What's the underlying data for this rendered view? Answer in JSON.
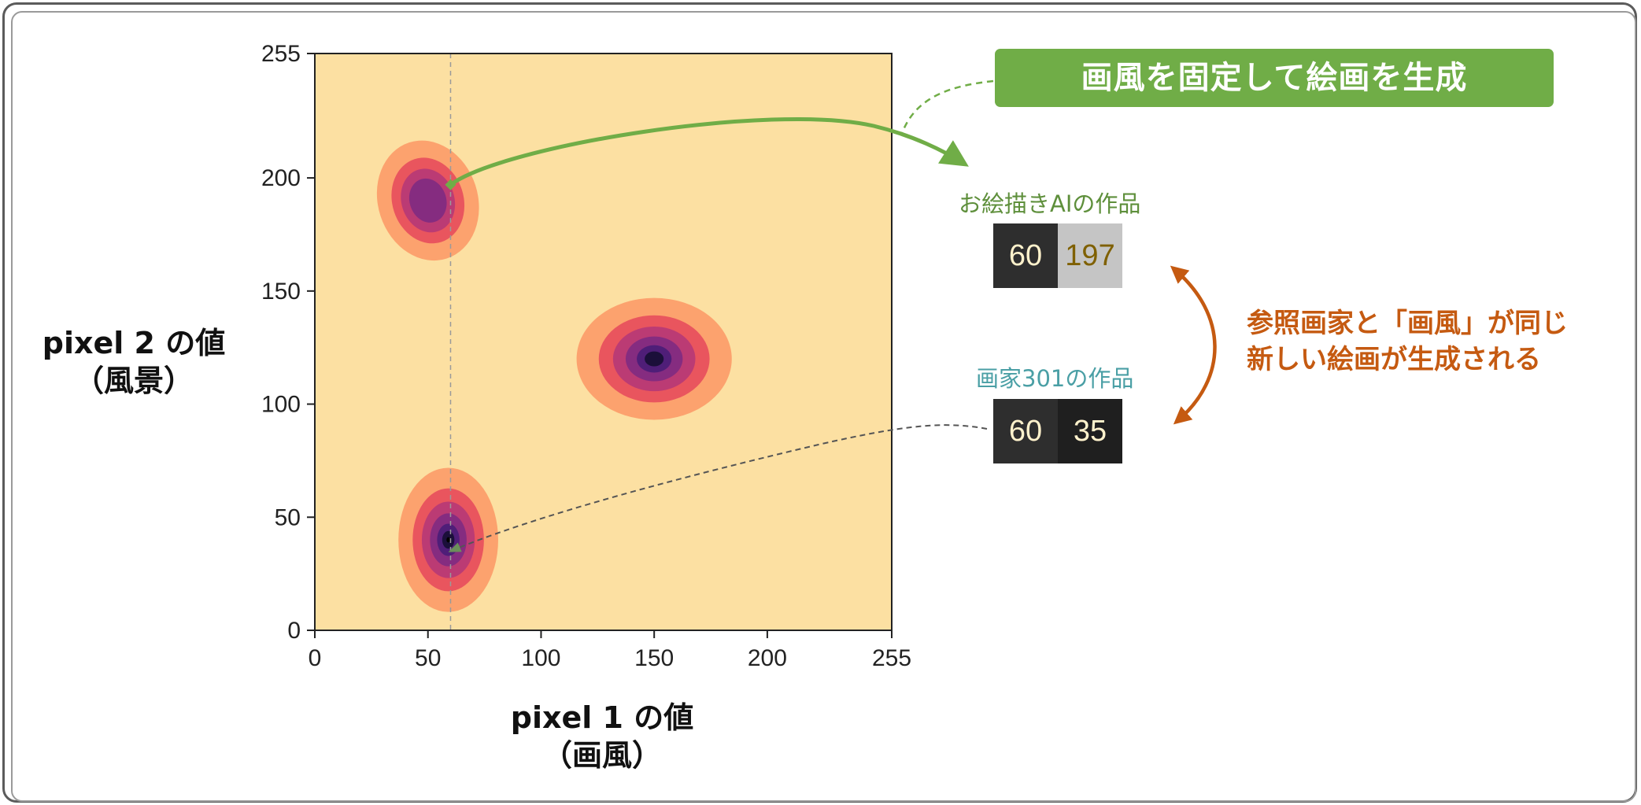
{
  "chart_data": {
    "type": "heatmap",
    "subtype": "filled-contour density",
    "xlabel": "pixel 1 の値",
    "xlabel_sub": "（画風）",
    "ylabel": "pixel 2 の値",
    "ylabel_sub": "（風景）",
    "xlim": [
      0,
      255
    ],
    "ylim": [
      0,
      255
    ],
    "x_ticks": [
      "0",
      "50",
      "100",
      "150",
      "200",
      "255"
    ],
    "y_ticks": [
      "0",
      "50",
      "100",
      "150",
      "200",
      "255"
    ],
    "x_tick_values": [
      0,
      50,
      100,
      150,
      200,
      255
    ],
    "y_tick_values": [
      0,
      50,
      100,
      150,
      200,
      255
    ],
    "colormap": [
      "#fce0a2",
      "#fca26e",
      "#e9555e",
      "#bb3b74",
      "#852c80",
      "#4f1e78",
      "#1b0f3a"
    ],
    "clusters": [
      {
        "center": [
          50,
          190
        ],
        "sigma_x": 9,
        "sigma_y": 11,
        "rotation": -18,
        "peak_level": 4
      },
      {
        "center": [
          150,
          120
        ],
        "sigma_x": 14,
        "sigma_y": 11,
        "rotation": 0,
        "peak_level": 6
      },
      {
        "center": [
          59,
          40
        ],
        "sigma_x": 9,
        "sigma_y": 13,
        "rotation": 0,
        "peak_level": 7
      }
    ],
    "reference_line_x": 60,
    "highlight_points": [
      {
        "x": 60,
        "y": 197,
        "label": "お絵描きAIの作品"
      },
      {
        "x": 60,
        "y": 35,
        "label": "画家301の作品"
      }
    ]
  },
  "annotations": {
    "banner": "画風を固定して絵画を生成",
    "ai_caption": "お絵描きAIの作品",
    "ai_pixels": [
      "60",
      "197"
    ],
    "artist_caption": "画家301の作品",
    "artist_pixels": [
      "60",
      "35"
    ],
    "note_line1": "参照画家と「画風」が同じ",
    "note_line2": "新しい絵画が生成される"
  },
  "colors": {
    "green": "#70ad47",
    "orange": "#c55a11",
    "teal": "#4a9fa5",
    "ai_caption_color": "#5e8f3b",
    "pixel_text_light": "#fff2cc",
    "pixel_text_olive": "#7f6000"
  }
}
